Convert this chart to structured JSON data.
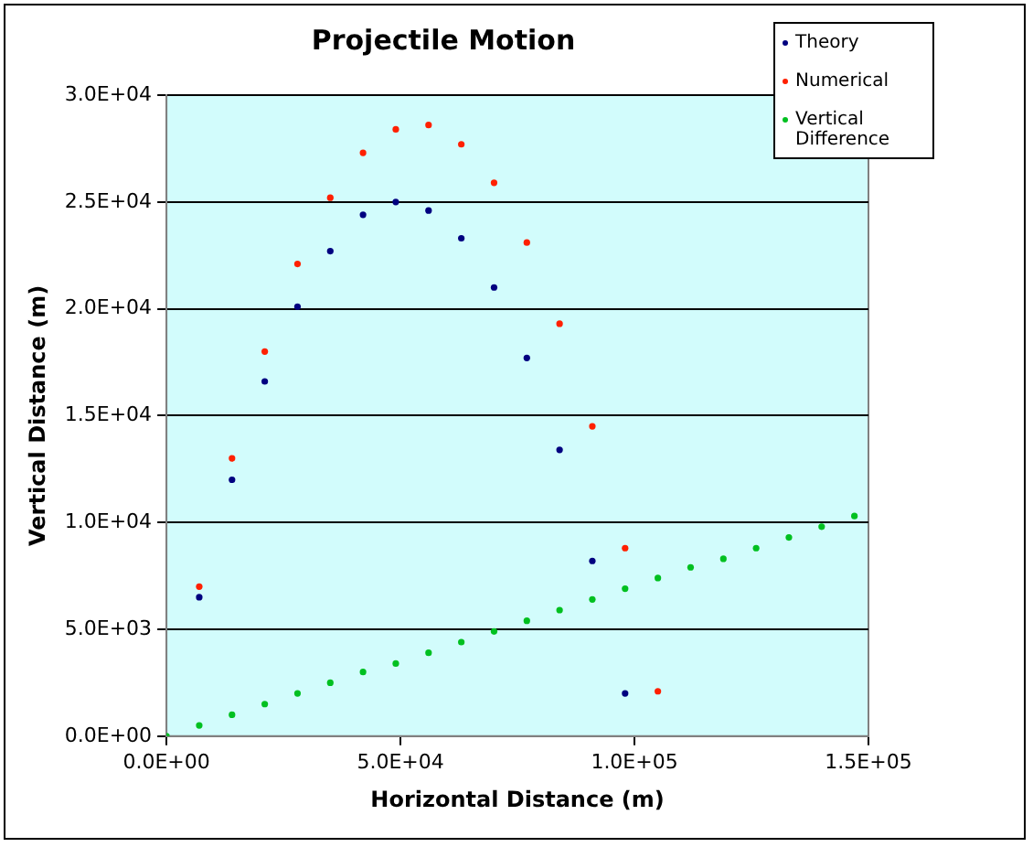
{
  "chart_data": {
    "type": "scatter",
    "title": "Projectile Motion",
    "xlabel": "Horizontal Distance (m)",
    "ylabel": "Vertical Distance (m)",
    "xlim": [
      0,
      150000
    ],
    "xticks": [
      {
        "value": 0,
        "label": "0.0E+00"
      },
      {
        "value": 50000,
        "label": "5.0E+04"
      },
      {
        "value": 100000,
        "label": "1.0E+05"
      },
      {
        "value": 150000,
        "label": "1.5E+05"
      }
    ],
    "ylim": [
      0,
      30000
    ],
    "yticks": [
      {
        "value": 0,
        "label": "0.0E+00"
      },
      {
        "value": 5000,
        "label": "5.0E+03"
      },
      {
        "value": 10000,
        "label": "1.0E+04"
      },
      {
        "value": 15000,
        "label": "1.5E+04"
      },
      {
        "value": 20000,
        "label": "2.0E+04"
      },
      {
        "value": 25000,
        "label": "2.5E+04"
      },
      {
        "value": 30000,
        "label": "3.0E+04"
      }
    ],
    "grid": "y",
    "legend": "top right",
    "marker": "circle",
    "series": [
      {
        "name": "Theory",
        "color": "#000080",
        "x": [
          7000,
          14000,
          21000,
          28000,
          35000,
          42000,
          49000,
          56000,
          63000,
          70000,
          77000,
          84000,
          91000,
          98000
        ],
        "values": [
          6500,
          12000,
          16600,
          20100,
          22700,
          24400,
          25000,
          24600,
          23300,
          21000,
          17700,
          13400,
          8200,
          2000
        ]
      },
      {
        "name": "Numerical",
        "color": "#ff2000",
        "x": [
          7000,
          14000,
          21000,
          28000,
          35000,
          42000,
          49000,
          56000,
          63000,
          70000,
          77000,
          84000,
          91000,
          98000,
          105000
        ],
        "values": [
          7000,
          13000,
          18000,
          22100,
          25200,
          27300,
          28400,
          28600,
          27700,
          25900,
          23100,
          19300,
          14500,
          8800,
          2100
        ]
      },
      {
        "name": "Vertical Difference",
        "color": "#00c020",
        "x": [
          0,
          7000,
          14000,
          21000,
          28000,
          35000,
          42000,
          49000,
          56000,
          63000,
          70000,
          77000,
          84000,
          91000,
          98000,
          105000,
          112000,
          119000,
          126000,
          133000,
          140000,
          147000
        ],
        "values": [
          0,
          500,
          1000,
          1500,
          2000,
          2500,
          3000,
          3400,
          3900,
          4400,
          4900,
          5400,
          5900,
          6400,
          6900,
          7400,
          7900,
          8300,
          8800,
          9300,
          9800,
          10300
        ]
      }
    ]
  }
}
